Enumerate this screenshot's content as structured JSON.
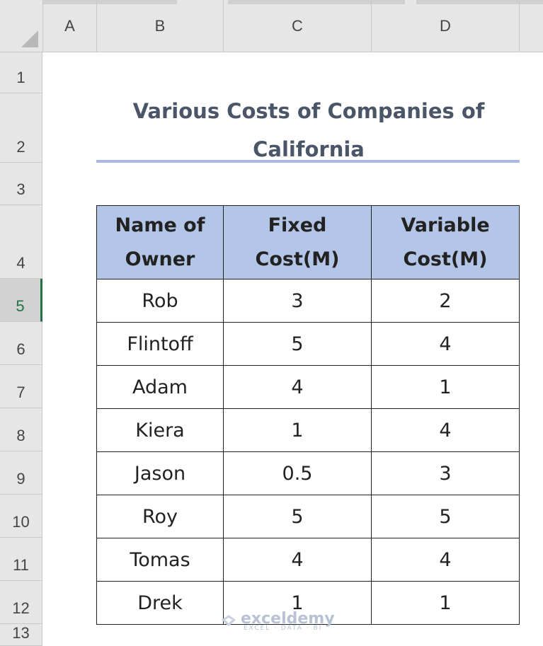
{
  "columns": [
    "A",
    "B",
    "C",
    "D"
  ],
  "rows": [
    "1",
    "2",
    "3",
    "4",
    "5",
    "6",
    "7",
    "8",
    "9",
    "10",
    "11",
    "12",
    "13"
  ],
  "active_row": "5",
  "title": "Various Costs of Companies of California",
  "table": {
    "headers": [
      "Name of Owner",
      "Fixed Cost(M)",
      "Variable Cost(M)"
    ],
    "rows": [
      [
        "Rob",
        "3",
        "2"
      ],
      [
        "Flintoff",
        "5",
        "4"
      ],
      [
        "Adam",
        "4",
        "1"
      ],
      [
        "Kiera",
        "1",
        "4"
      ],
      [
        "Jason",
        "0.5",
        "3"
      ],
      [
        "Roy",
        "5",
        "5"
      ],
      [
        "Tomas",
        "4",
        "4"
      ],
      [
        "Drek",
        "1",
        "1"
      ]
    ]
  },
  "watermark": {
    "logo": "exceldemy",
    "sub": "EXCEL · DATA · BI"
  },
  "colors": {
    "header_fill": "#b4c6e7",
    "title_text": "#4a5668",
    "title_rule": "#aab9dd",
    "active_row_indicator": "#217346"
  }
}
